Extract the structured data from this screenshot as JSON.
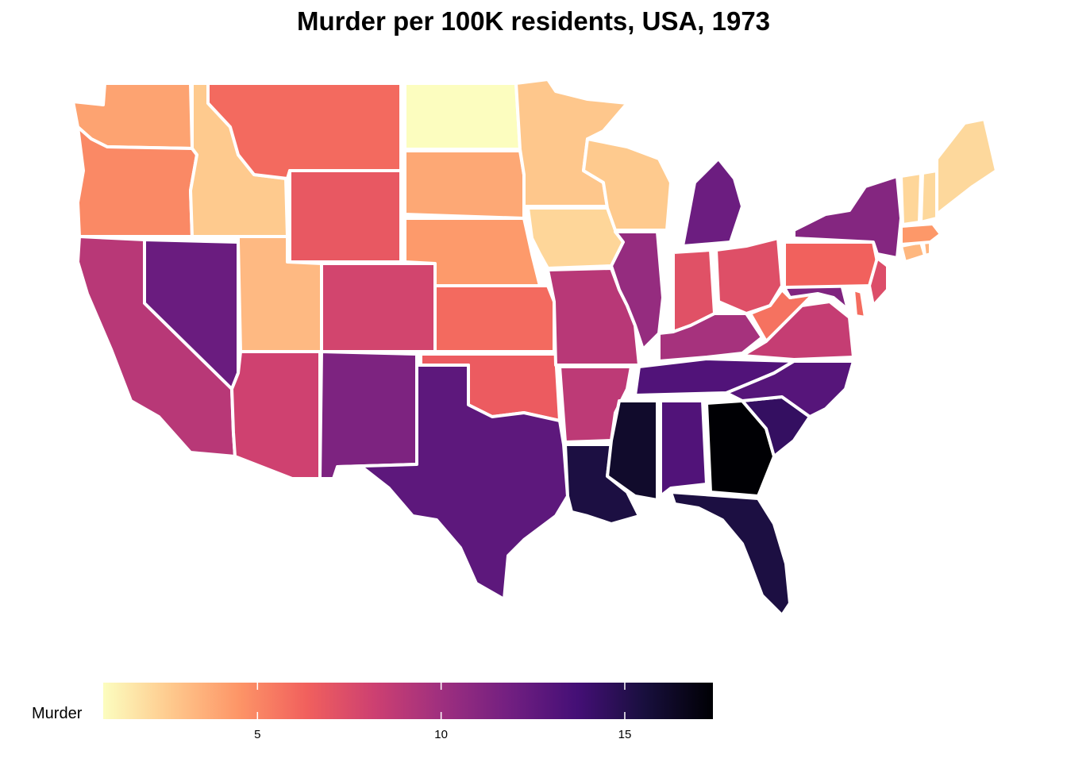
{
  "title": "Murder per 100K residents, USA, 1973",
  "legend": {
    "title": "Murder",
    "range": [
      0.8,
      17.4
    ],
    "ticks": [
      5,
      10,
      15
    ],
    "tick_labels": [
      "5",
      "10",
      "15"
    ],
    "palette": [
      "#fcfdbf",
      "#fec98d",
      "#fd9567",
      "#f1605d",
      "#cd4071",
      "#9e2f7f",
      "#721f81",
      "#440f76",
      "#180f3d",
      "#000004"
    ]
  },
  "chart_data": {
    "type": "choropleth",
    "title": "Murder per 100K residents, USA, 1973",
    "variable": "Murder",
    "states": [
      {
        "state": "Washington",
        "value": 4.0
      },
      {
        "state": "Oregon",
        "value": 4.9
      },
      {
        "state": "California",
        "value": 9.0
      },
      {
        "state": "Nevada",
        "value": 12.2
      },
      {
        "state": "Idaho",
        "value": 2.6
      },
      {
        "state": "Montana",
        "value": 6.0
      },
      {
        "state": "Wyoming",
        "value": 6.8
      },
      {
        "state": "Utah",
        "value": 3.2
      },
      {
        "state": "Arizona",
        "value": 8.1
      },
      {
        "state": "Colorado",
        "value": 7.9
      },
      {
        "state": "New Mexico",
        "value": 11.4
      },
      {
        "state": "North Dakota",
        "value": 0.8
      },
      {
        "state": "South Dakota",
        "value": 3.8
      },
      {
        "state": "Nebraska",
        "value": 4.3
      },
      {
        "state": "Kansas",
        "value": 6.0
      },
      {
        "state": "Oklahoma",
        "value": 6.6
      },
      {
        "state": "Texas",
        "value": 12.7
      },
      {
        "state": "Minnesota",
        "value": 2.7
      },
      {
        "state": "Iowa",
        "value": 2.2
      },
      {
        "state": "Missouri",
        "value": 9.0
      },
      {
        "state": "Arkansas",
        "value": 8.8
      },
      {
        "state": "Louisiana",
        "value": 15.4
      },
      {
        "state": "Wisconsin",
        "value": 2.6
      },
      {
        "state": "Illinois",
        "value": 10.4
      },
      {
        "state": "Michigan",
        "value": 12.1
      },
      {
        "state": "Indiana",
        "value": 7.2
      },
      {
        "state": "Ohio",
        "value": 7.3
      },
      {
        "state": "Kentucky",
        "value": 9.7
      },
      {
        "state": "Tennessee",
        "value": 13.2
      },
      {
        "state": "Mississippi",
        "value": 16.1
      },
      {
        "state": "Alabama",
        "value": 13.2
      },
      {
        "state": "Georgia",
        "value": 17.4
      },
      {
        "state": "Florida",
        "value": 15.4
      },
      {
        "state": "South Carolina",
        "value": 14.4
      },
      {
        "state": "North Carolina",
        "value": 13.0
      },
      {
        "state": "Virginia",
        "value": 8.5
      },
      {
        "state": "West Virginia",
        "value": 5.7
      },
      {
        "state": "Maryland",
        "value": 11.3
      },
      {
        "state": "Delaware",
        "value": 5.9
      },
      {
        "state": "Pennsylvania",
        "value": 6.3
      },
      {
        "state": "New Jersey",
        "value": 7.4
      },
      {
        "state": "New York",
        "value": 11.1
      },
      {
        "state": "Connecticut",
        "value": 3.3
      },
      {
        "state": "Rhode Island",
        "value": 3.4
      },
      {
        "state": "Massachusetts",
        "value": 4.4
      },
      {
        "state": "Vermont",
        "value": 2.2
      },
      {
        "state": "New Hampshire",
        "value": 2.1
      },
      {
        "state": "Maine",
        "value": 2.1
      }
    ]
  }
}
